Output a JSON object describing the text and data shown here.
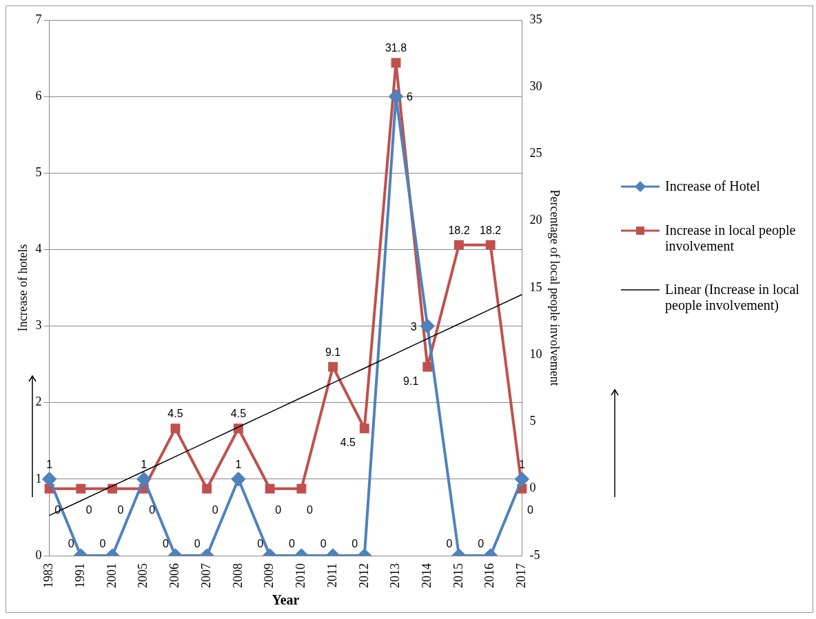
{
  "chart_data": {
    "type": "line",
    "xlabel": "Year",
    "ylabel": "Increase of hotels",
    "y2label": "Percentage of local people involvement",
    "categories": [
      "1983",
      "1991",
      "2001",
      "2005",
      "2006",
      "2007",
      "2008",
      "2009",
      "2010",
      "2011",
      "2012",
      "2013",
      "2014",
      "2015",
      "2016",
      "2017"
    ],
    "series": [
      {
        "name": "Increase of Hotel",
        "color": "#4f81bd",
        "marker": "diamond",
        "values": [
          1,
          0,
          0,
          1,
          0,
          0,
          1,
          0,
          0,
          0,
          0,
          6,
          3,
          0,
          0,
          1
        ],
        "value_labels": [
          "1",
          "0",
          "0",
          "1",
          "0",
          "0",
          "1",
          "0",
          "0",
          "0",
          "0",
          "6",
          "3",
          "0",
          "0",
          "1"
        ]
      },
      {
        "name": "Increase in local people involvement",
        "color": "#c0504d",
        "marker": "square",
        "axis": "y2",
        "values": [
          0,
          0,
          0,
          0,
          4.5,
          0,
          4.5,
          0,
          0,
          9.1,
          4.5,
          31.8,
          9.1,
          18.2,
          18.2,
          0
        ],
        "value_labels": [
          "0",
          "0",
          "0",
          "0",
          "4.5",
          "0",
          "4.5",
          "0",
          "0",
          "9.1",
          "4.5",
          "31.8",
          "9.1",
          "18.2",
          "18.2",
          "0"
        ]
      },
      {
        "name": "Linear (Increase in local people involvement)",
        "color": "#000000",
        "marker": "none",
        "axis": "y2",
        "values": [
          -2.0,
          -0.9,
          0.2,
          1.3,
          2.4,
          3.5,
          4.6,
          5.7,
          6.8,
          7.9,
          9.0,
          10.1,
          11.2,
          12.3,
          13.4,
          14.5
        ]
      }
    ],
    "ylim": [
      0,
      7
    ],
    "yticks": [
      0,
      1,
      2,
      3,
      4,
      5,
      6,
      7
    ],
    "y2lim": [
      -5,
      35
    ],
    "y2ticks": [
      -5,
      0,
      5,
      10,
      15,
      20,
      25,
      30,
      35
    ],
    "grid": "y",
    "legend": "right"
  }
}
